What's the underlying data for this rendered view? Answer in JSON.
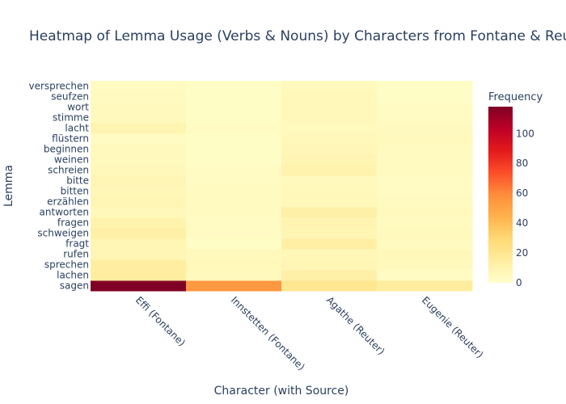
{
  "chart_data": {
    "type": "heatmap",
    "title": "Heatmap of Lemma Usage (Verbs & Nouns) by Characters from Fontane & Reuter",
    "xlabel": "Character (with Source)",
    "ylabel": "Lemma",
    "x": [
      "Effi (Fontane)",
      "Innstetten (Fontane)",
      "Agathe (Reuter)",
      "Eugenie (Reuter)"
    ],
    "y": [
      "sagen",
      "lachen",
      "sprechen",
      "rufen",
      "fragt",
      "schweigen",
      "fragen",
      "antworten",
      "erzählen",
      "bitten",
      "bitte",
      "schreien",
      "weinen",
      "beginnen",
      "flüstern",
      "lacht",
      "stimme",
      "wort",
      "seufzen",
      "versprechen"
    ],
    "z": [
      [
        118,
        55,
        20,
        15
      ],
      [
        15,
        5,
        12,
        3
      ],
      [
        14,
        6,
        8,
        5
      ],
      [
        8,
        5,
        7,
        6
      ],
      [
        8,
        2,
        13,
        4
      ],
      [
        12,
        3,
        8,
        5
      ],
      [
        10,
        3,
        9,
        4
      ],
      [
        6,
        4,
        12,
        5
      ],
      [
        8,
        4,
        6,
        4
      ],
      [
        7,
        4,
        6,
        3
      ],
      [
        8,
        3,
        5,
        3
      ],
      [
        6,
        3,
        10,
        4
      ],
      [
        5,
        2,
        9,
        4
      ],
      [
        5,
        2,
        7,
        4
      ],
      [
        3,
        2,
        6,
        5
      ],
      [
        9,
        3,
        5,
        4
      ],
      [
        5,
        2,
        6,
        3
      ],
      [
        5,
        2,
        6,
        3
      ],
      [
        4,
        2,
        6,
        2
      ],
      [
        3,
        2,
        5,
        2
      ]
    ],
    "zmin": 0,
    "zmax": 118,
    "colorscale": "YlOrRd",
    "colorbar_title": "Frequency",
    "colorbar_ticks": [
      0,
      20,
      40,
      60,
      80,
      100
    ]
  }
}
